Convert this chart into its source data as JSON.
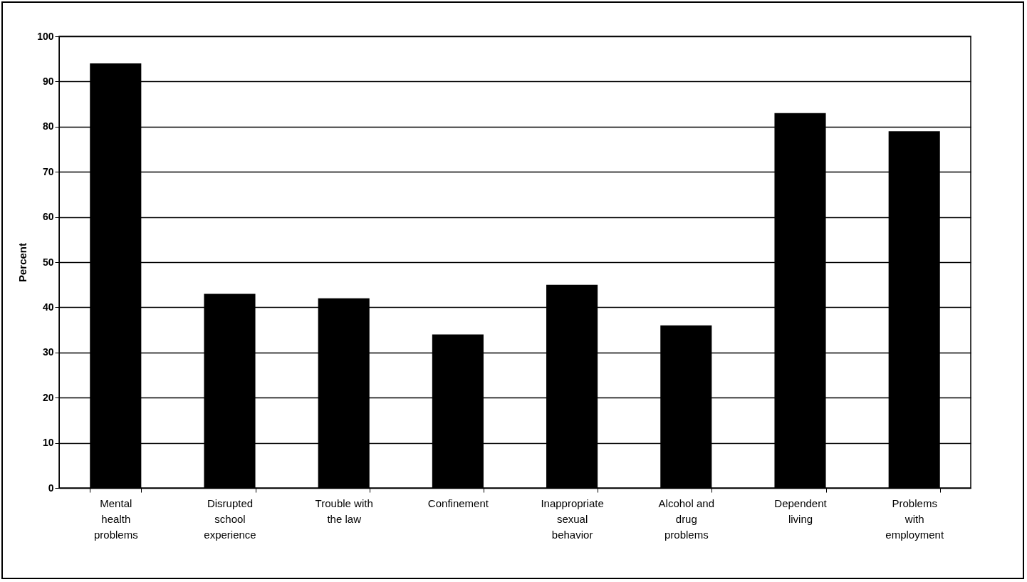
{
  "chart_data": {
    "type": "bar",
    "ylabel": "Percent",
    "categories": [
      "Mental health problems",
      "Disrupted school experience",
      "Trouble with the law",
      "Confinement",
      "Inappropriate sexual behavior",
      "Alcohol and drug problems",
      "Dependent living",
      "Problems with employment"
    ],
    "values": [
      94,
      43,
      42,
      34,
      45,
      36,
      83,
      79
    ],
    "color": "#000000",
    "ylim": [
      0,
      100
    ],
    "yticks": [
      0,
      10,
      20,
      30,
      40,
      50,
      60,
      70,
      80,
      90,
      100
    ],
    "grid": "y"
  }
}
